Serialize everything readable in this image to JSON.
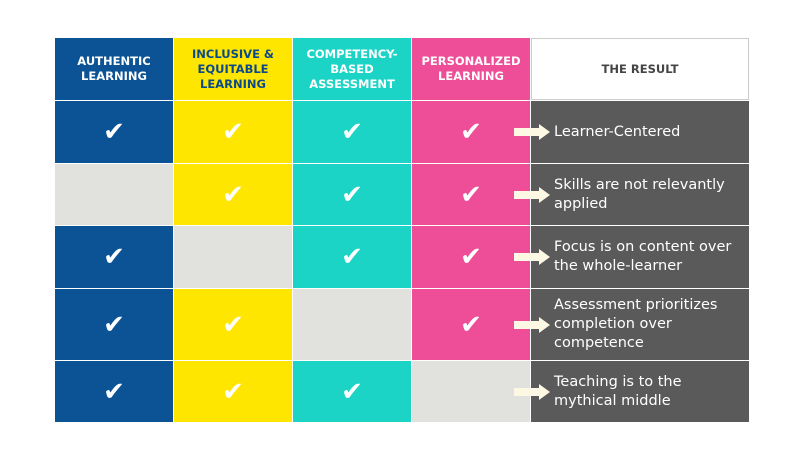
{
  "colors": {
    "authentic": "#0b5394",
    "inclusive": "#ffe600",
    "competency": "#1cd4c5",
    "personalized": "#ee4d97",
    "empty": "#e1e1dd",
    "result": "#5a5a5a",
    "arrow": "#fdf8e4"
  },
  "headers": [
    "AUTHENTIC LEARNING",
    "INCLUSIVE & EQUITABLE LEARNING",
    "COMPETENCY-BASED ASSESSMENT",
    "PERSONALIZED LEARNING",
    "THE RESULT"
  ],
  "check_glyph": "✔",
  "rows": [
    {
      "checks": [
        true,
        true,
        true,
        true
      ],
      "result": "Learner-Centered"
    },
    {
      "checks": [
        false,
        true,
        true,
        true
      ],
      "result": "Skills are not relevantly applied"
    },
    {
      "checks": [
        true,
        false,
        true,
        true
      ],
      "result": "Focus is on content over the whole-learner"
    },
    {
      "checks": [
        true,
        true,
        false,
        true
      ],
      "result": "Assessment prioritizes completion over competence"
    },
    {
      "checks": [
        true,
        true,
        true,
        false
      ],
      "result": "Teaching is to the mythical middle"
    }
  ]
}
